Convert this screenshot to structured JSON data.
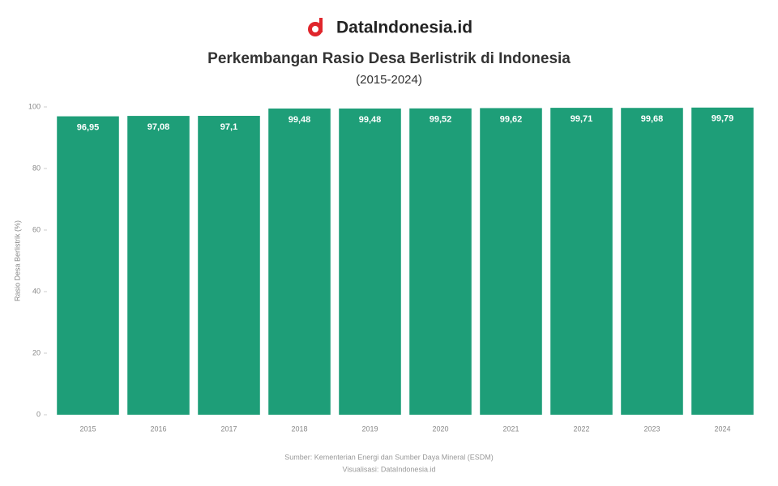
{
  "brand": "DataIndonesia.id",
  "chart_data": {
    "type": "bar",
    "title": "Perkembangan Rasio Desa Berlistrik di Indonesia",
    "subtitle": "(2015-2024)",
    "y_label": "Rasio Desa Berlistrik (%)",
    "source": "Sumber: Kementerian Energi dan Sumber Daya Mineral (ESDM)",
    "credit": "Visualisasi: DataIndonesia.id",
    "categories": [
      "2015",
      "2016",
      "2017",
      "2018",
      "2019",
      "2020",
      "2021",
      "2022",
      "2023",
      "2024"
    ],
    "values": [
      96.95,
      97.08,
      97.1,
      99.48,
      99.48,
      99.52,
      99.62,
      99.71,
      99.68,
      99.79
    ],
    "value_labels": [
      "96,95",
      "97,08",
      "97,1",
      "99,48",
      "99,48",
      "99,52",
      "99,62",
      "99,71",
      "99,68",
      "99,79"
    ],
    "color": "#1e9e78",
    "ylim": [
      0,
      100
    ],
    "yticks": [
      0,
      20,
      40,
      60,
      80,
      100
    ],
    "grid": false
  }
}
